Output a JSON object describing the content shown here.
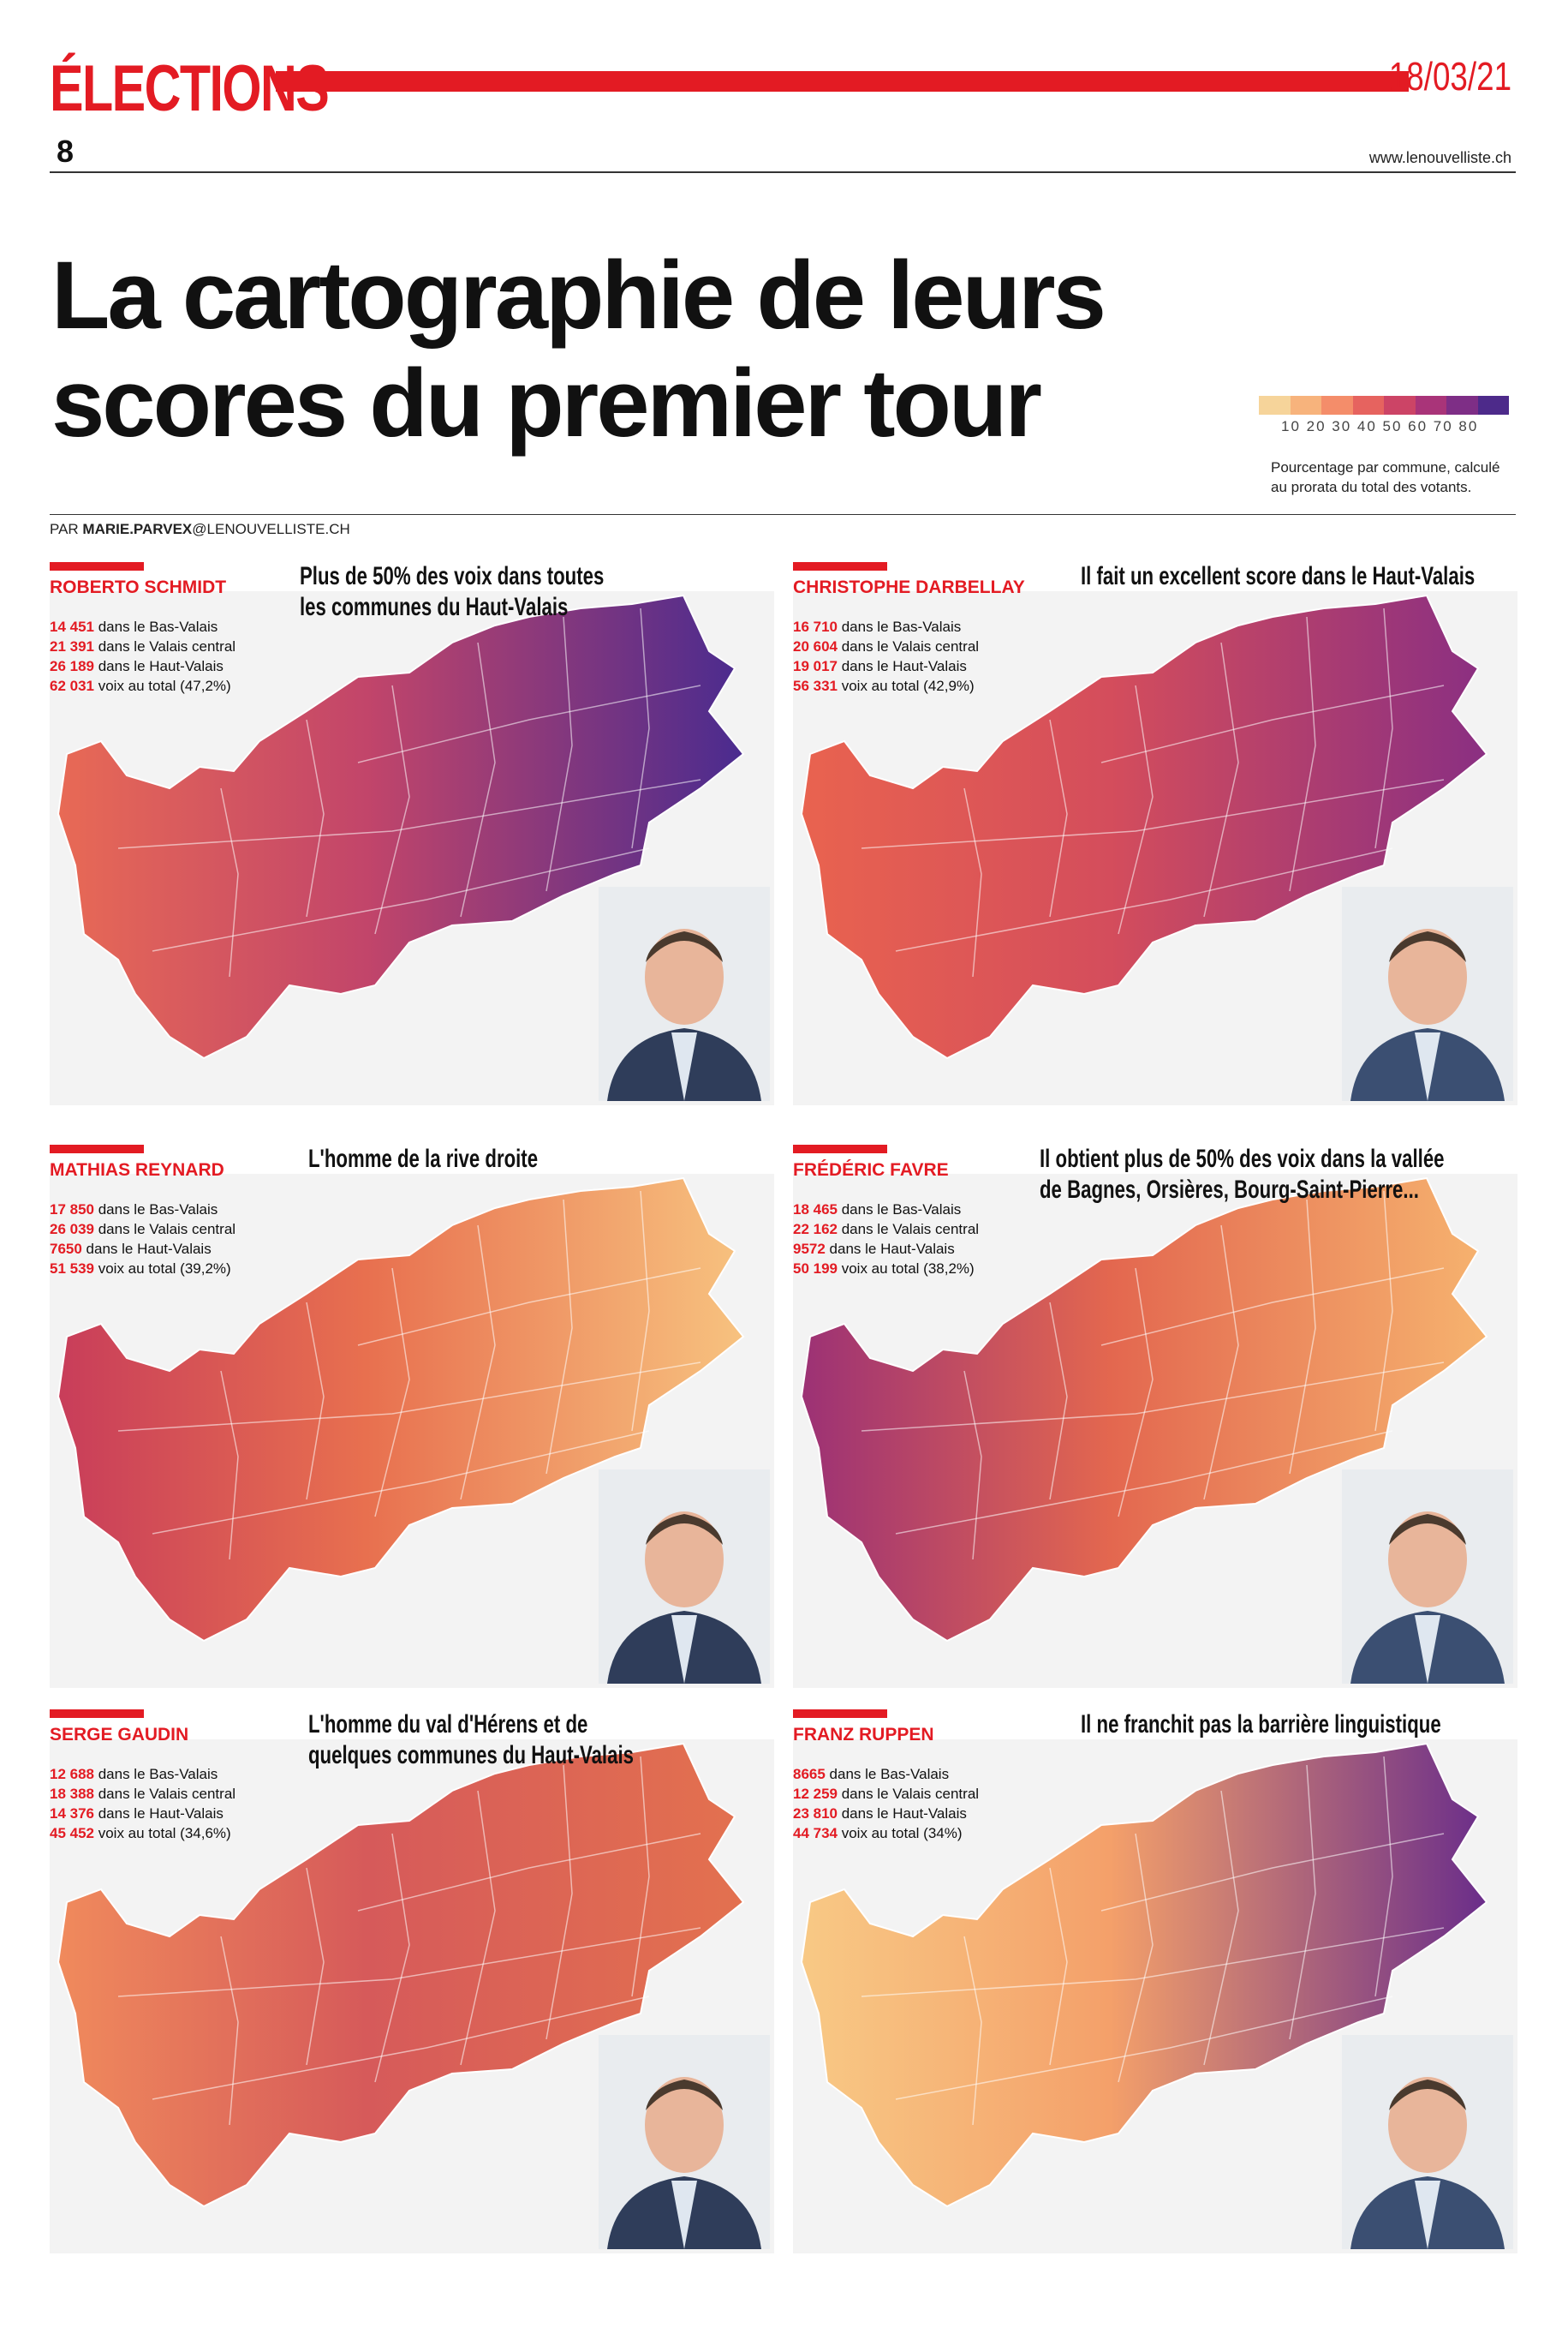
{
  "header": {
    "section": "ÉLECTIONS",
    "date": "18/03/21",
    "page": "8",
    "site": "www.lenouvelliste.ch"
  },
  "headline": {
    "line1": "La cartographie de leurs",
    "line2": "scores du premier tour"
  },
  "legend": {
    "ticks": "10 20 30 40 50 60 70 80",
    "note_line1": "Pourcentage par commune, calculé",
    "note_line2": "au prorata du total des votants.",
    "colors": [
      "#f6d49a",
      "#f7b37c",
      "#f48d6a",
      "#e6635f",
      "#cc4466",
      "#a93479",
      "#7e2e86",
      "#4d2a8a"
    ]
  },
  "byline": {
    "prefix": "PAR ",
    "author": "MARIE.PARVEX",
    "domain": "@LENOUVELLISTE.CH"
  },
  "candidates": [
    {
      "name": "ROBERTO SCHMIDT",
      "quote_line1": "Plus de 50% des voix dans toutes",
      "quote_line2": "les communes du Haut-Valais",
      "stats": [
        {
          "num": "14 451",
          "text": " dans le Bas-Valais"
        },
        {
          "num": "21 391",
          "text": " dans le Valais central"
        },
        {
          "num": "26 189",
          "text": " dans le Haut-Valais"
        },
        {
          "num": "62 031",
          "text": " voix au total (47,2%)"
        }
      ],
      "colors": {
        "west": "#e86a55",
        "center": "#c2456a",
        "east": "#4a2b8f"
      }
    },
    {
      "name": "CHRISTOPHE DARBELLAY",
      "quote_line1": "Il fait un excellent score dans le Haut-Valais",
      "quote_line2": "",
      "stats": [
        {
          "num": "16 710",
          "text": " dans le Bas-Valais"
        },
        {
          "num": "20 604",
          "text": " dans le Valais central"
        },
        {
          "num": "19 017",
          "text": " dans le Haut-Valais"
        },
        {
          "num": "56 331",
          "text": " voix au total (42,9%)"
        }
      ],
      "colors": {
        "west": "#e9634f",
        "center": "#d44d5c",
        "east": "#8a2f82"
      }
    },
    {
      "name": "MATHIAS REYNARD",
      "quote_line1": "L'homme de la rive droite",
      "quote_line2": "",
      "stats": [
        {
          "num": "17 850",
          "text": " dans le Bas-Valais"
        },
        {
          "num": "26 039",
          "text": " dans le Valais central"
        },
        {
          "num": "7650",
          "text": " dans le Haut-Valais"
        },
        {
          "num": "51 539",
          "text": " voix au total (39,2%)"
        }
      ],
      "colors": {
        "west": "#c83d5a",
        "center": "#e8704f",
        "east": "#f7c27f"
      }
    },
    {
      "name": "FRÉDÉRIC FAVRE",
      "quote_line1": "Il obtient plus de 50% des voix dans la vallée",
      "quote_line2": "de Bagnes, Orsières, Bourg-Saint-Pierre...",
      "stats": [
        {
          "num": "18 465",
          "text": " dans le Bas-Valais"
        },
        {
          "num": "22 162",
          "text": " dans le Valais central"
        },
        {
          "num": "9572",
          "text": " dans le Haut-Valais"
        },
        {
          "num": "50 199",
          "text": " voix au total (38,2%)"
        }
      ],
      "colors": {
        "west": "#9c3175",
        "center": "#e3674f",
        "east": "#f6b36f"
      }
    },
    {
      "name": "SERGE GAUDIN",
      "quote_line1": "L'homme du val d'Hérens et de",
      "quote_line2": "quelques communes du Haut-Valais",
      "stats": [
        {
          "num": "12 688",
          "text": " dans le Bas-Valais"
        },
        {
          "num": "18 388",
          "text": " dans le Valais central"
        },
        {
          "num": "14 376",
          "text": " dans le Haut-Valais"
        },
        {
          "num": "45 452",
          "text": " voix au total (34,6%)"
        }
      ],
      "colors": {
        "west": "#f08a5c",
        "center": "#d65a5a",
        "east": "#e3714f"
      }
    },
    {
      "name": "FRANZ RUPPEN",
      "quote_line1": "Il ne franchit pas la barrière linguistique",
      "quote_line2": "",
      "stats": [
        {
          "num": "8665",
          "text": " dans le Bas-Valais"
        },
        {
          "num": "12 259",
          "text": " dans le Valais central"
        },
        {
          "num": "23 810",
          "text": " dans le Haut-Valais"
        },
        {
          "num": "44 734",
          "text": " voix au total (34%)"
        }
      ],
      "colors": {
        "west": "#f8c985",
        "center": "#f4a06a",
        "east": "#6a2d8a"
      }
    }
  ]
}
